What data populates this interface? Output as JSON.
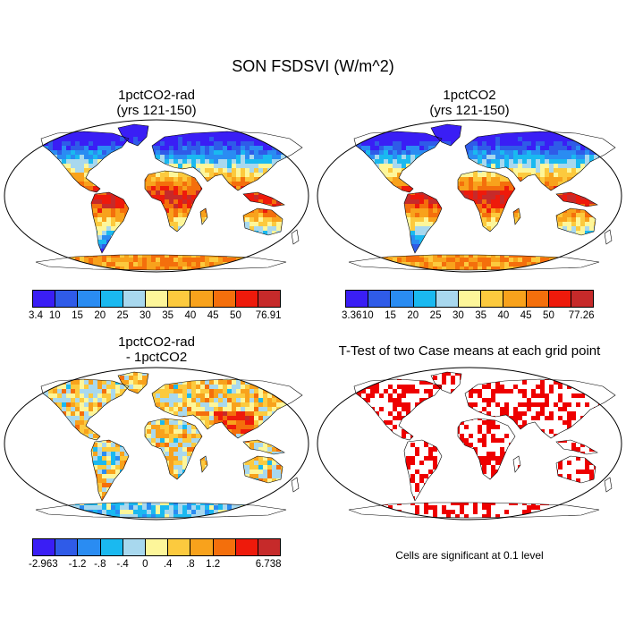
{
  "main_title": "SON FSDSVI (W/m^2)",
  "panels": [
    {
      "title_line1": "1pctCO2-rad",
      "title_line2": "(yrs 121-150)",
      "kind": "absolute"
    },
    {
      "title_line1": "1pctCO2",
      "title_line2": "(yrs 121-150)",
      "kind": "absolute"
    },
    {
      "title_line1": "1pctCO2-rad",
      "title_line2": "- 1pctCO2",
      "kind": "difference"
    },
    {
      "title_line1": "T-Test of two Case means at each grid point",
      "title_line2": "",
      "kind": "significance"
    }
  ],
  "colorbars": [
    {
      "colors": [
        "#3a1ef5",
        "#2f5be8",
        "#2a8cf2",
        "#1ab9f0",
        "#a8d8ee",
        "#fdf69a",
        "#fcca3e",
        "#f8a21c",
        "#f46f0c",
        "#ee1a0b",
        "#c62a2a"
      ],
      "labels": [
        "3.4",
        "10",
        "15",
        "20",
        "25",
        "30",
        "35",
        "40",
        "45",
        "50",
        "76.91"
      ]
    },
    {
      "colors": [
        "#3a1ef5",
        "#2f5be8",
        "#2a8cf2",
        "#1ab9f0",
        "#a8d8ee",
        "#fdf69a",
        "#fcca3e",
        "#f8a21c",
        "#f46f0c",
        "#ee1a0b",
        "#c62a2a"
      ],
      "labels": [
        "3.36",
        "10",
        "15",
        "20",
        "25",
        "30",
        "35",
        "40",
        "45",
        "50",
        "77.26"
      ]
    },
    {
      "colors": [
        "#3a1ef5",
        "#2f5be8",
        "#2a8cf2",
        "#1ab9f0",
        "#a8d8ee",
        "#fdf69a",
        "#fcca3e",
        "#f8a21c",
        "#f46f0c",
        "#ee1a0b",
        "#c62a2a"
      ],
      "labels": [
        "-2.963",
        "",
        "-1.2",
        "-.8",
        "-.4",
        "0",
        ".4",
        ".8",
        "1.2",
        "",
        "6.738"
      ]
    }
  ],
  "significance_note": "Cells are significant at 0.1 level",
  "significance_color": "#ee0000"
}
